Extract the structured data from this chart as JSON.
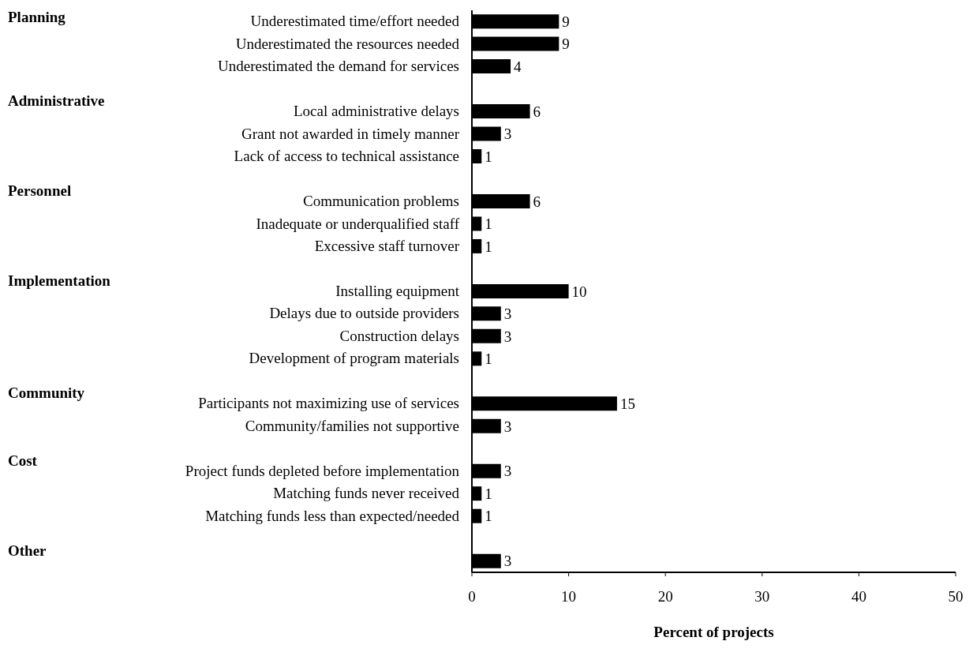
{
  "chart_data": {
    "type": "bar",
    "orientation": "horizontal",
    "categories": [
      "Underestimated time/effort needed",
      "Underestimated the resources needed",
      "Underestimated the demand for services",
      null,
      "Local administrative delays",
      "Grant not awarded in timely manner",
      "Lack of access to technical assistance",
      null,
      "Communication problems",
      "Inadequate or underqualified staff",
      "Excessive staff turnover",
      null,
      "Installing equipment",
      "Delays due to outside providers",
      "Construction delays",
      "Development of program materials",
      null,
      "Participants not maximizing use of services",
      "Community/families not supportive",
      null,
      "Project funds depleted before implementation",
      "Matching funds never received",
      "Matching funds less than expected/needed",
      null,
      null
    ],
    "values": [
      9,
      9,
      4,
      null,
      6,
      3,
      1,
      null,
      6,
      1,
      1,
      null,
      10,
      3,
      3,
      1,
      null,
      15,
      3,
      null,
      3,
      1,
      1,
      null,
      3
    ],
    "color": "#000000",
    "data_labels": true,
    "xlim": [
      0,
      50
    ],
    "xticks": [
      0,
      10,
      20,
      30,
      40,
      50
    ],
    "xlabel": "Percent of projects",
    "grid": false,
    "legend": false,
    "annotations": [
      "Planning",
      "Administrative",
      "Personnel",
      "Implementation",
      "Community",
      "Cost",
      "Other"
    ]
  }
}
